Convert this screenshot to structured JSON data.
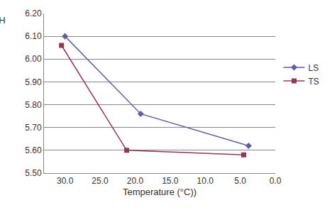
{
  "chart_data": {
    "type": "line",
    "x_label": "Temperature (°C))",
    "y_label": "pH",
    "series": [
      {
        "name": "LS",
        "color": "#5b5fa8",
        "marker": "diamond",
        "x": [
          30.0,
          19.2,
          3.8
        ],
        "values": [
          6.1,
          5.76,
          5.62
        ]
      },
      {
        "name": "TS",
        "color": "#98345a",
        "marker": "square",
        "x": [
          30.5,
          21.2,
          4.5
        ],
        "values": [
          6.06,
          5.6,
          5.58
        ]
      }
    ],
    "xlim": [
      33.0,
      0.0
    ],
    "xticks": [
      {
        "value": 30,
        "label": "30.0"
      },
      {
        "value": 25,
        "label": "25.0"
      },
      {
        "value": 20,
        "label": "20.0"
      },
      {
        "value": 15,
        "label": "15.0"
      },
      {
        "value": 10,
        "label": "10.0"
      },
      {
        "value": 5,
        "label": "5.0"
      },
      {
        "value": 0,
        "label": "0.0"
      }
    ],
    "ylim": [
      5.5,
      6.2
    ],
    "yticks": [
      {
        "value": 5.5,
        "label": "5.50"
      },
      {
        "value": 5.6,
        "label": "5.60"
      },
      {
        "value": 5.7,
        "label": "5.70"
      },
      {
        "value": 5.8,
        "label": "5.80"
      },
      {
        "value": 5.9,
        "label": "5.90"
      },
      {
        "value": 6.0,
        "label": "6.00"
      },
      {
        "value": 6.1,
        "label": "6.10"
      },
      {
        "value": 6.2,
        "label": "6.20"
      }
    ],
    "grid": true,
    "legend": "right"
  }
}
